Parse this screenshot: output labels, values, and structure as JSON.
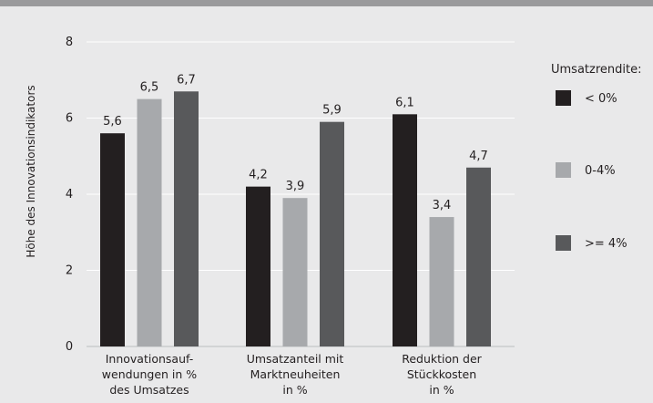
{
  "chart_data": {
    "type": "bar",
    "categories": [
      [
        "Innovationsauf-",
        "wendungen in %",
        "des Umsatzes"
      ],
      [
        "Umsatzanteil mit",
        "Marktneuheiten",
        "in %"
      ],
      [
        "Reduktion der",
        "Stückkosten",
        "in %"
      ]
    ],
    "series": [
      {
        "name": "< 0%",
        "values": [
          5.6,
          4.2,
          6.1
        ],
        "labels": [
          "5,6",
          "4,2",
          "6,1"
        ],
        "color": "#231f20"
      },
      {
        "name": "0-4%",
        "values": [
          6.5,
          3.9,
          3.4
        ],
        "labels": [
          "6,5",
          "3,9",
          "3,4"
        ],
        "color": "#a7a9ac"
      },
      {
        "name": ">= 4%",
        "values": [
          6.7,
          5.9,
          4.7
        ],
        "labels": [
          "6,7",
          "5,9",
          "4,7"
        ],
        "color": "#58595b"
      }
    ],
    "ylabel": "Höhe des Innovationsindikators",
    "ylim": [
      0,
      8
    ],
    "yticks": [
      0,
      2,
      4,
      6,
      8
    ],
    "legend_title": "Umsatzrendite:",
    "legend_position": "right",
    "grid": true,
    "grid_color": "#ffffff",
    "background_color": "#e9e9ea"
  }
}
